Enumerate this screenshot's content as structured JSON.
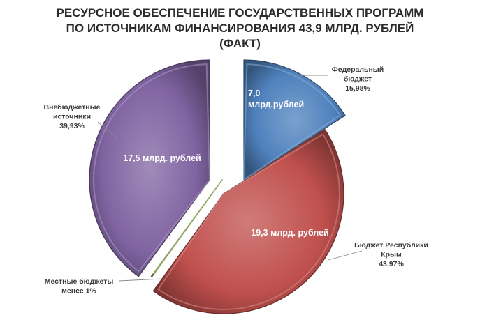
{
  "title": {
    "line1": "РЕСУРСНОЕ ОБЕСПЕЧЕНИЕ ГОСУДАРСТВЕННЫХ ПРОГРАММ",
    "line2": "ПО ИСТОЧНИКАМ ФИНАНСИРОВАНИЯ 43,9 МЛРД. РУБЛЕЙ",
    "line3": "(ФАКТ)"
  },
  "chart_data": {
    "type": "pie",
    "title": "РЕСУРСНОЕ ОБЕСПЕЧЕНИЕ ГОСУДАРСТВЕННЫХ ПРОГРАММ ПО ИСТОЧНИКАМ ФИНАНСИРОВАНИЯ 43,9 МЛРД. РУБЛЕЙ (ФАКТ)",
    "exploded": true,
    "slices": [
      {
        "key": "federal",
        "category": [
          "Федеральный",
          "бюджет"
        ],
        "percent_label": "15,98%",
        "percent": 15.98,
        "value_label": [
          "7,0",
          "млрд.рублей"
        ],
        "value": 7.0,
        "unit": "млрд. рублей",
        "color": "#4f81bd"
      },
      {
        "key": "crimea",
        "category": [
          "Бюджет Республики",
          "Крым"
        ],
        "percent_label": "43,97%",
        "percent": 43.97,
        "value_label": [
          "19,3 млрд. рублей"
        ],
        "value": 19.3,
        "unit": "млрд. рублей",
        "color": "#c0504d"
      },
      {
        "key": "local",
        "category": [
          "Местные  бюджеты",
          "менее 1%"
        ],
        "percent_label": "",
        "percent": 0.12,
        "value_label": [],
        "value": null,
        "color": "#9bbb59"
      },
      {
        "key": "extrabudget",
        "category": [
          "Внебюджетные",
          "источники"
        ],
        "percent_label": "39,93%",
        "percent": 39.93,
        "value_label": [
          "17,5  млрд. рублей"
        ],
        "value": 17.5,
        "unit": "млрд. рублей",
        "color": "#8064a2"
      }
    ]
  }
}
